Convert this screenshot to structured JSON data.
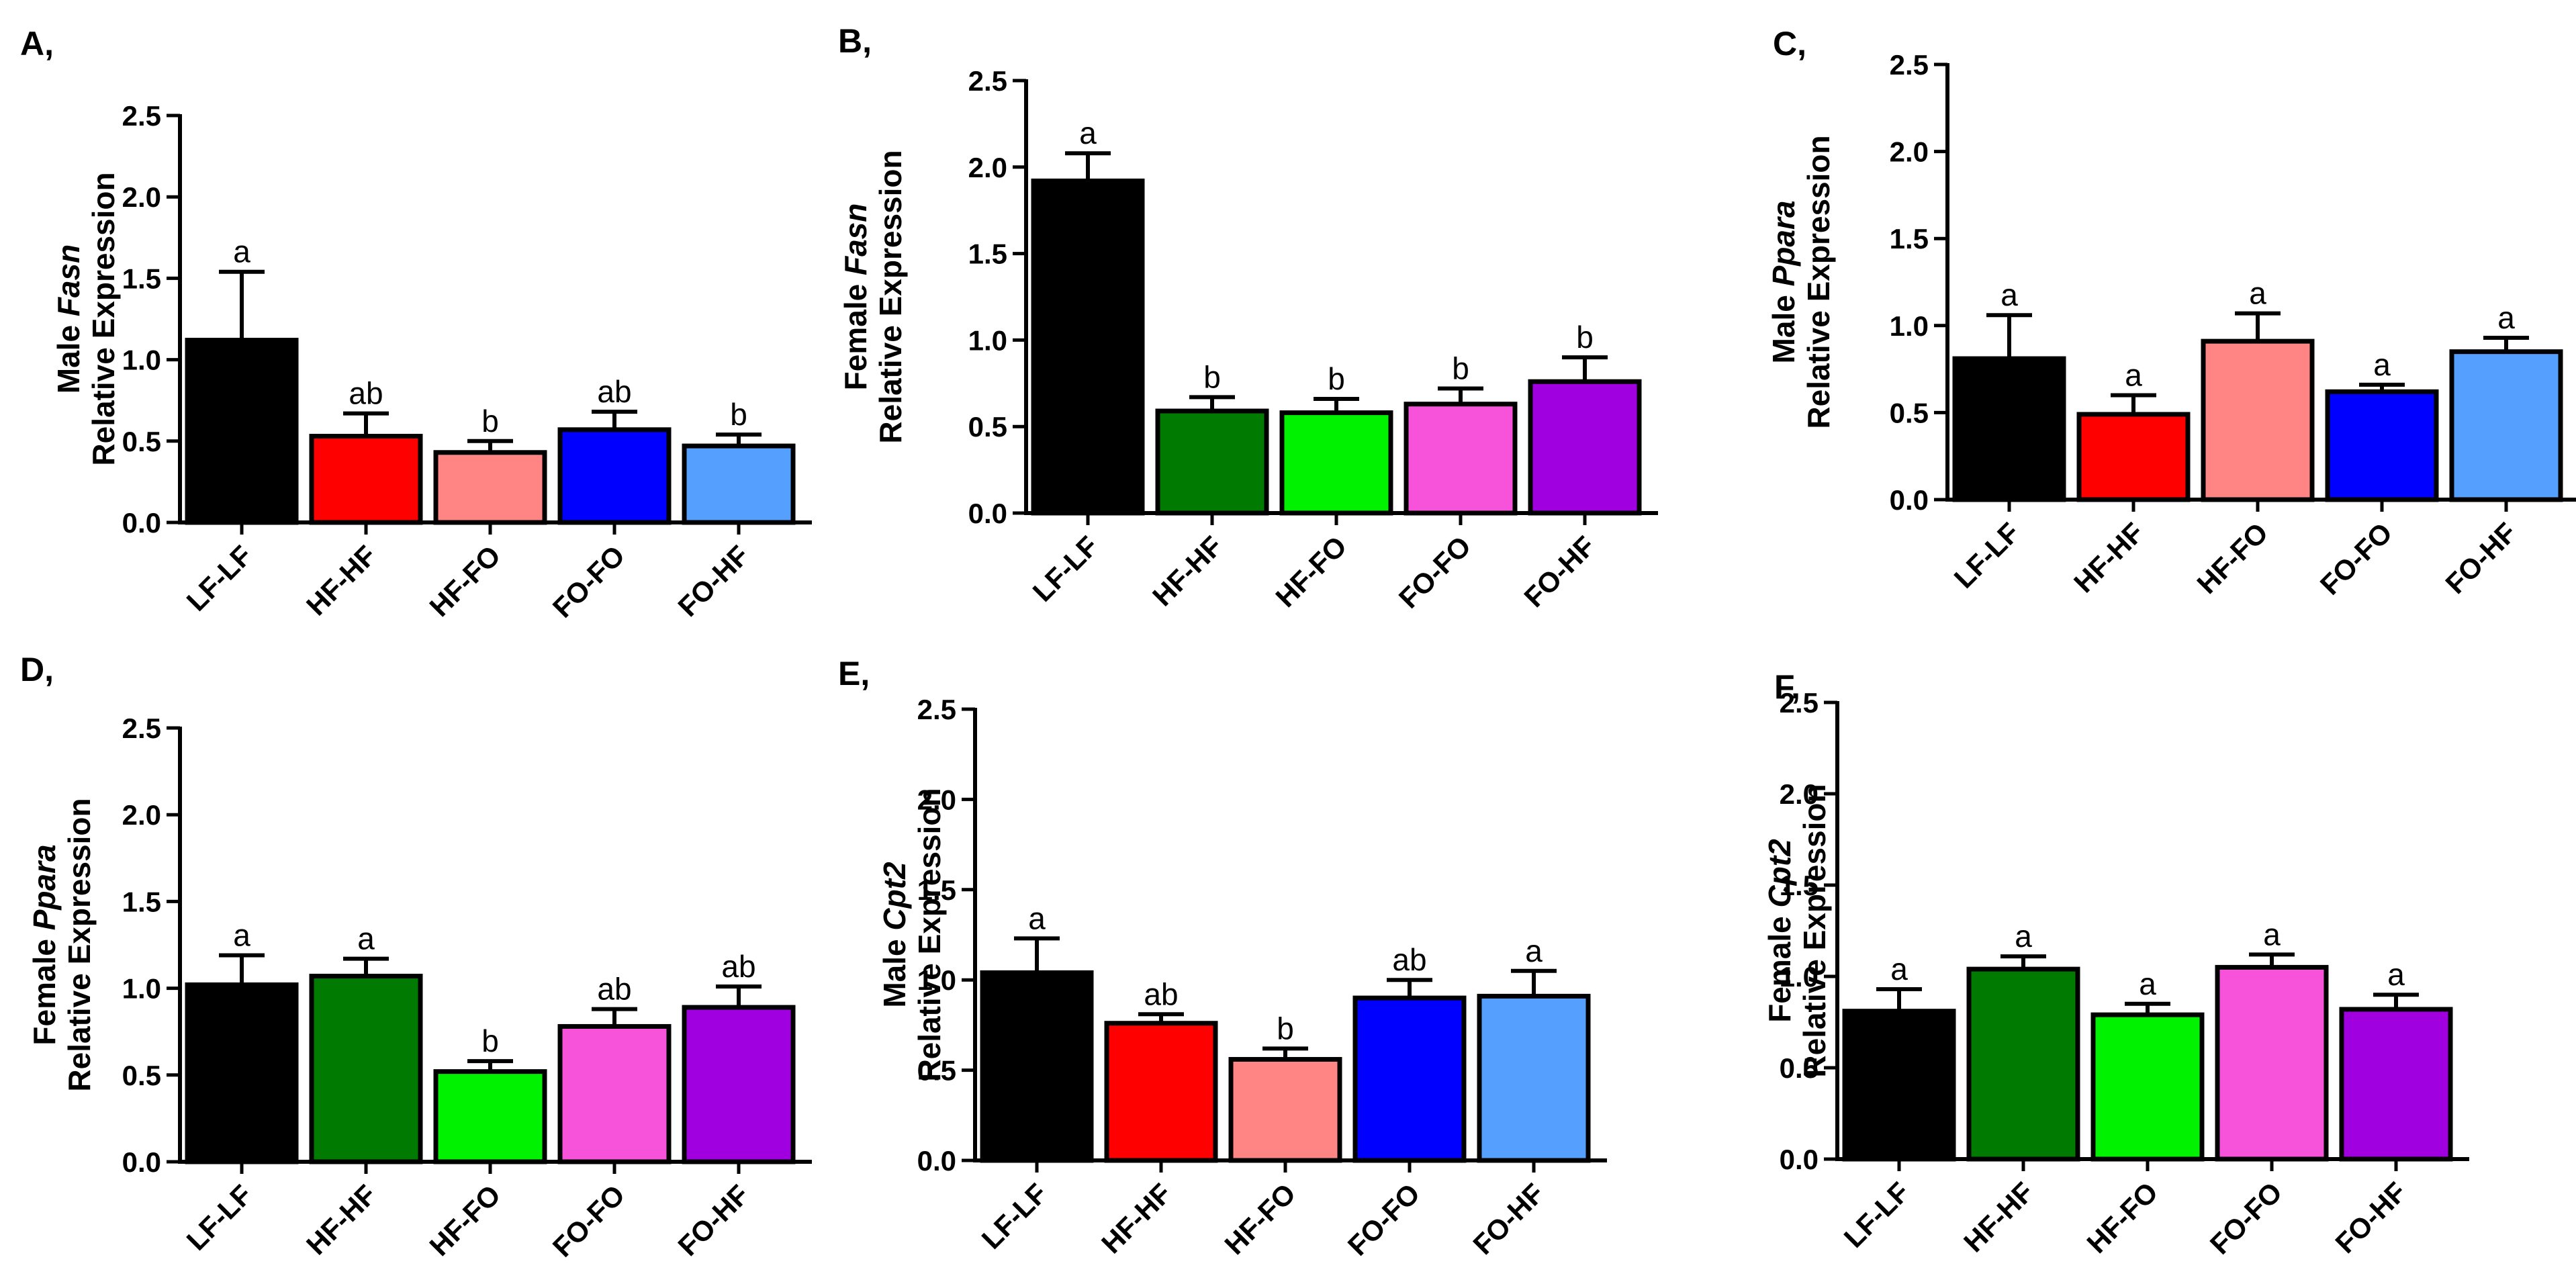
{
  "chart_data": [
    {
      "panel": "A,",
      "type": "bar",
      "ylabel_prefix": "Male",
      "gene": "Fasn",
      "ylabel_line2": "Relative Expression",
      "ylim": [
        0,
        2.5
      ],
      "yticks": [
        "0.0",
        "0.5",
        "1.0",
        "1.5",
        "2.0",
        "2.5"
      ],
      "categories": [
        "LF-LF",
        "HF-HF",
        "HF-FO",
        "FO-FO",
        "FO-HF"
      ],
      "values": [
        1.12,
        0.53,
        0.43,
        0.57,
        0.47
      ],
      "errors": [
        0.42,
        0.14,
        0.07,
        0.11,
        0.07
      ],
      "letters": [
        "a",
        "ab",
        "b",
        "ab",
        "b"
      ],
      "colors": [
        "#000000",
        "#ff0000",
        "#ff8585",
        "#0000ff",
        "#55a0ff"
      ]
    },
    {
      "panel": "B,",
      "type": "bar",
      "ylabel_prefix": "Female",
      "gene": "Fasn",
      "ylabel_line2": "Relative Expression",
      "ylim": [
        0,
        2.5
      ],
      "yticks": [
        "0.0",
        "0.5",
        "1.0",
        "1.5",
        "2.0",
        "2.5"
      ],
      "categories": [
        "LF-LF",
        "HF-HF",
        "HF-FO",
        "FO-FO",
        "FO-HF"
      ],
      "values": [
        1.92,
        0.59,
        0.58,
        0.63,
        0.76
      ],
      "errors": [
        0.16,
        0.08,
        0.08,
        0.09,
        0.14
      ],
      "letters": [
        "a",
        "b",
        "b",
        "b",
        "b"
      ],
      "colors": [
        "#000000",
        "#007a00",
        "#00f200",
        "#f652da",
        "#a000e0"
      ]
    },
    {
      "panel": "C,",
      "type": "bar",
      "ylabel_prefix": "Male",
      "gene": "Ppara",
      "ylabel_line2": "Relative Expression",
      "ylim": [
        0,
        2.5
      ],
      "yticks": [
        "0.0",
        "0.5",
        "1.0",
        "1.5",
        "2.0",
        "2.5"
      ],
      "categories": [
        "LF-LF",
        "HF-HF",
        "HF-FO",
        "FO-FO",
        "FO-HF"
      ],
      "values": [
        0.81,
        0.49,
        0.91,
        0.62,
        0.85
      ],
      "errors": [
        0.25,
        0.11,
        0.16,
        0.04,
        0.08
      ],
      "letters": [
        "a",
        "a",
        "a",
        "a",
        "a"
      ],
      "colors": [
        "#000000",
        "#ff0000",
        "#ff8585",
        "#0000ff",
        "#55a0ff"
      ]
    },
    {
      "panel": "D,",
      "type": "bar",
      "ylabel_prefix": "Female",
      "gene": "Ppara",
      "ylabel_line2": "Relative Expression",
      "ylim": [
        0,
        2.5
      ],
      "yticks": [
        "0.0",
        "0.5",
        "1.0",
        "1.5",
        "2.0",
        "2.5"
      ],
      "categories": [
        "LF-LF",
        "HF-HF",
        "HF-FO",
        "FO-FO",
        "FO-HF"
      ],
      "values": [
        1.02,
        1.07,
        0.52,
        0.78,
        0.89
      ],
      "errors": [
        0.17,
        0.1,
        0.06,
        0.1,
        0.12
      ],
      "letters": [
        "a",
        "a",
        "b",
        "ab",
        "ab"
      ],
      "colors": [
        "#000000",
        "#007a00",
        "#00f200",
        "#f652da",
        "#a000e0"
      ]
    },
    {
      "panel": "E,",
      "type": "bar",
      "ylabel_prefix": "Male",
      "gene": "Cpt2",
      "ylabel_line2": "Relative Expression",
      "ylim": [
        0,
        2.5
      ],
      "yticks": [
        "0.0",
        "0.5",
        "1.0",
        "1.5",
        "2.0",
        "2.5"
      ],
      "categories": [
        "LF-LF",
        "HF-HF",
        "HF-FO",
        "FO-FO",
        "FO-HF"
      ],
      "values": [
        1.04,
        0.76,
        0.56,
        0.9,
        0.91
      ],
      "errors": [
        0.19,
        0.05,
        0.06,
        0.1,
        0.14
      ],
      "letters": [
        "a",
        "ab",
        "b",
        "ab",
        "a"
      ],
      "colors": [
        "#000000",
        "#ff0000",
        "#ff8585",
        "#0000ff",
        "#55a0ff"
      ]
    },
    {
      "panel": "F,",
      "type": "bar",
      "ylabel_prefix": "Female",
      "gene": "Cpt2",
      "ylabel_line2": "Relative Expression",
      "ylim": [
        0,
        2.5
      ],
      "yticks": [
        "0.0",
        "0.5",
        "1.0",
        "1.5",
        "2.0",
        "2.5"
      ],
      "categories": [
        "LF-LF",
        "HF-HF",
        "HF-FO",
        "FO-FO",
        "FO-HF"
      ],
      "values": [
        0.81,
        1.04,
        0.79,
        1.05,
        0.82
      ],
      "errors": [
        0.12,
        0.07,
        0.06,
        0.07,
        0.08
      ],
      "letters": [
        "a",
        "a",
        "a",
        "a",
        "a"
      ],
      "colors": [
        "#000000",
        "#007a00",
        "#00f200",
        "#f652da",
        "#a000e0"
      ]
    }
  ]
}
